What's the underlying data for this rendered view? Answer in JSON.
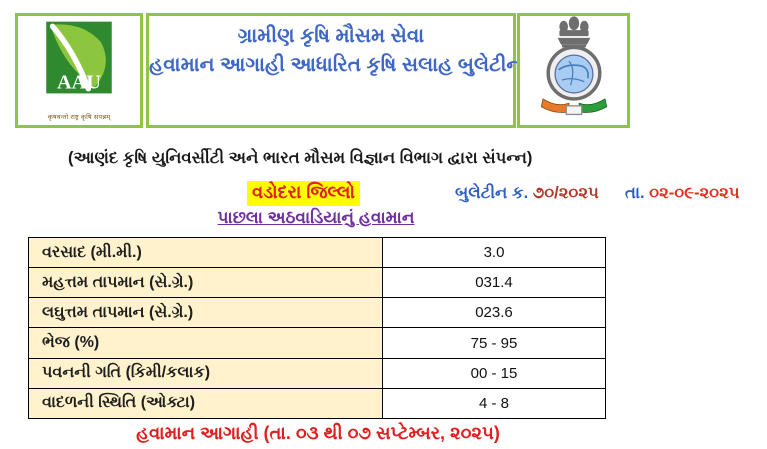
{
  "header": {
    "aau_logo": {
      "abbr": "AAU",
      "motto": "कृषवन्तो राष्ट्र कृषि संपन्नम्"
    },
    "title_line1": "ગ્રામીણ કૃષિ મૌસમ સેવા",
    "title_line2": "હવામાન આગાહી આધારિત કૃષિ સલાહ બુલેટીન"
  },
  "affiliation": "(આણંદ કૃષિ યુનિવર્સીટી અને ભારત મૌસમ વિજ્ઞાન વિભાગ દ્વારા સંપન્ન)",
  "bulletin": {
    "district": "વડોદરા જિલ્લો",
    "number_label": "બુલેટીન ક.",
    "number_value": "૭૦/૨૦૨૫",
    "date_label": "તા.",
    "date_value": "૦૨-૦૯-૨૦૨૫"
  },
  "weekly_weather": {
    "heading": "પાછલા અઠવાડિયાનું હવામાન",
    "rows": [
      {
        "label": "વરસાદ (મી.મી.)",
        "value": "3.0"
      },
      {
        "label": "મહત્તમ તાપમાન (સે.ગ્રે.)",
        "value": "031.4"
      },
      {
        "label": "લઘુત્તમ તાપમાન (સે.ગ્રે.)",
        "value": "023.6"
      },
      {
        "label": "ભેજ (%)",
        "value": "75 - 95"
      },
      {
        "label": "પવનની ગતિ (કિમી/કલાક)",
        "value": "00 - 15"
      },
      {
        "label": "વાદળની સ્થિતિ (ઓક્ટા)",
        "value": "4 - 8"
      }
    ]
  },
  "forecast_heading": "હવામાન આગાહી (તા. ૦૩ થી ૦૭ સપ્ટેમ્બર, ૨૦૨૫)",
  "colors": {
    "border_green": "#8DC63F",
    "title_blue": "#3F67C5",
    "label_blue": "#2E5EC4",
    "number_dark_red": "#B03A2A",
    "date_red": "#E0301E",
    "highlight_yellow": "#FFFF00",
    "district_red": "#E02020",
    "heading_purple": "#7030A0",
    "table_label_bg": "#FFF2CC",
    "forecast_red": "#E02020"
  }
}
